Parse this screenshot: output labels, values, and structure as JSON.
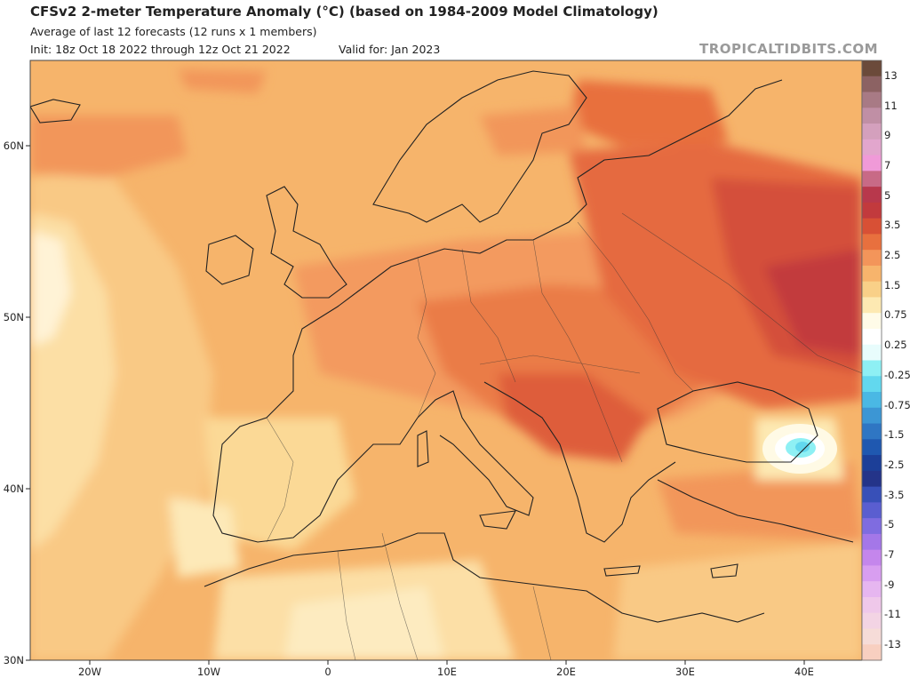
{
  "header": {
    "title": "CFSv2 2-meter Temperature Anomaly (°C) (based on 1984-2009 Model Climatology)",
    "subtitle": "Average of last 12 forecasts (12 runs x 1 members)",
    "init": "Init: 18z Oct 18 2022 through 12z Oct 21 2022",
    "valid": "Valid for: Jan 2023",
    "watermark": "TROPICALTIDBITS.COM"
  },
  "map": {
    "region": "Europe",
    "lat_range": [
      30,
      65
    ],
    "lon_range": [
      -25,
      45
    ],
    "lat_ticks": [
      "60N",
      "50N",
      "40N",
      "30N"
    ],
    "lon_ticks": [
      "20W",
      "10W",
      "0",
      "10E",
      "20E",
      "30E",
      "40E"
    ],
    "anomaly_regions": [
      {
        "area": "Ukraine / western Russia",
        "anomaly": "2.5 to 3.5"
      },
      {
        "area": "Balkans / Romania",
        "anomaly": "2.5 to 3.5"
      },
      {
        "area": "Central Europe",
        "anomaly": "1.5 to 2.5"
      },
      {
        "area": "Iberian Peninsula / North Africa",
        "anomaly": "0.25 to 1.5"
      },
      {
        "area": "Caucasus (near 42N 40E)",
        "anomaly": "-0.25 to -1"
      }
    ]
  },
  "colorbar": {
    "labels": [
      "13",
      "11",
      "9",
      "7",
      "5",
      "3.5",
      "2.5",
      "1.5",
      "0.75",
      "0.25",
      "-0.25",
      "-0.75",
      "-1.5",
      "-2.5",
      "-3.5",
      "-5",
      "-7",
      "-9",
      "-11",
      "-13"
    ],
    "colors": [
      "#6b4a3a",
      "#8c6263",
      "#a87a85",
      "#c08fa5",
      "#d4a0bd",
      "#e2a6cd",
      "#f09ad8",
      "#c86a86",
      "#b8384c",
      "#c23a3d",
      "#d85035",
      "#e8703e",
      "#f3955a",
      "#f7b46c",
      "#f9d088",
      "#fde9b2",
      "#fffbe8",
      "#ffffff",
      "#e8fcfc",
      "#8ef0f4",
      "#62d8ee",
      "#4ab8e4",
      "#3c96d4",
      "#2f76c3",
      "#1f58b0",
      "#1c3f98",
      "#243489",
      "#3850b8",
      "#5a5ed0",
      "#7f6ce0",
      "#a477e8",
      "#c486ec",
      "#d89ef0",
      "#e6b6f0",
      "#efc8ea",
      "#f3d4e4",
      "#f6dcd8",
      "#f8cfc0"
    ]
  }
}
